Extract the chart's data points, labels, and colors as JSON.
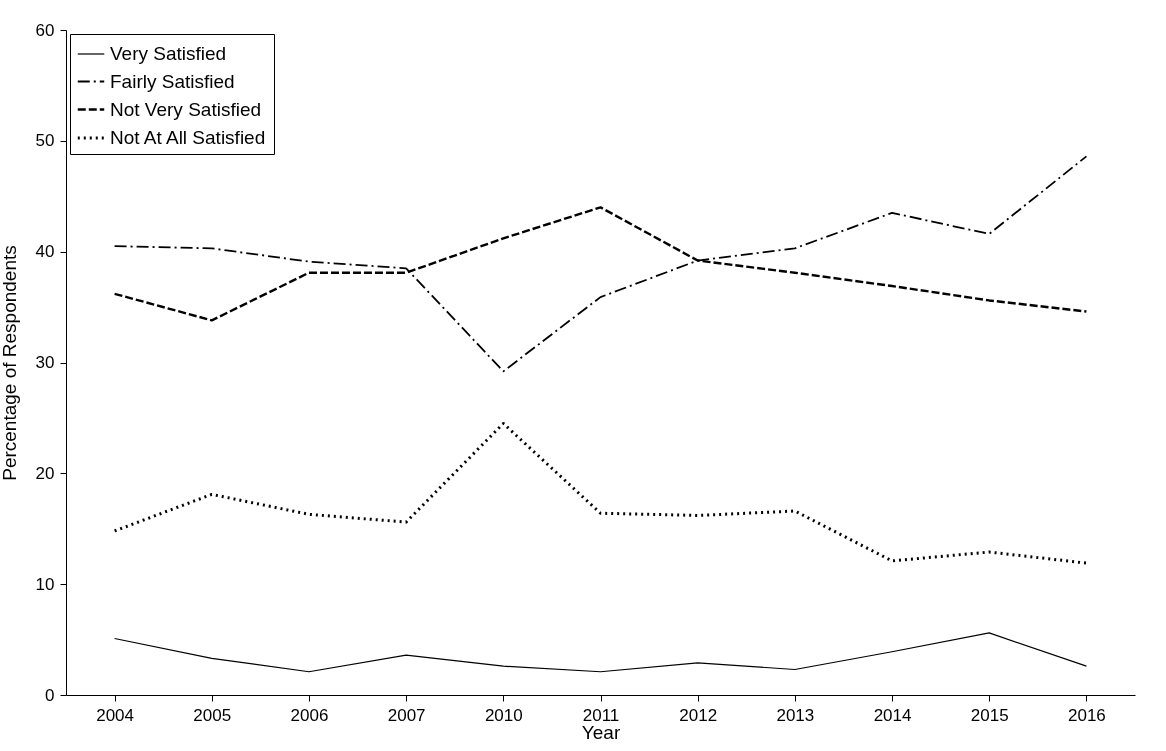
{
  "chart_data": {
    "type": "line",
    "xlabel": "Year",
    "ylabel": "Percentage of Respondents",
    "categories": [
      "2004",
      "2005",
      "2006",
      "2007",
      "2010",
      "2011",
      "2012",
      "2013",
      "2014",
      "2015",
      "2016"
    ],
    "series": [
      {
        "name": "Very Satisfied",
        "color": "#000000",
        "line_style": "solid",
        "values": [
          5.1,
          3.3,
          2.1,
          3.6,
          2.6,
          2.1,
          2.9,
          2.3,
          3.9,
          5.6,
          2.6
        ]
      },
      {
        "name": "Fairly Satisfied",
        "color": "#000000",
        "line_style": "dashdot",
        "values": [
          40.5,
          40.3,
          39.1,
          38.5,
          29.2,
          35.9,
          39.2,
          40.3,
          43.5,
          41.6,
          48.6
        ]
      },
      {
        "name": "Not Very Satisfied",
        "color": "#000000",
        "line_style": "dashed",
        "values": [
          36.2,
          33.8,
          38.1,
          38.1,
          41.2,
          44.0,
          39.2,
          38.1,
          36.9,
          35.6,
          34.6
        ]
      },
      {
        "name": "Not At All Satisfied",
        "color": "#000000",
        "line_style": "dotted",
        "values": [
          14.8,
          18.1,
          16.3,
          15.6,
          24.5,
          16.4,
          16.2,
          16.6,
          12.1,
          12.9,
          11.9
        ]
      }
    ],
    "ylim": [
      0,
      60
    ],
    "yticks": [
      0,
      10,
      20,
      30,
      40,
      50,
      60
    ],
    "grid": false,
    "legend": "top left",
    "marker": "none"
  }
}
